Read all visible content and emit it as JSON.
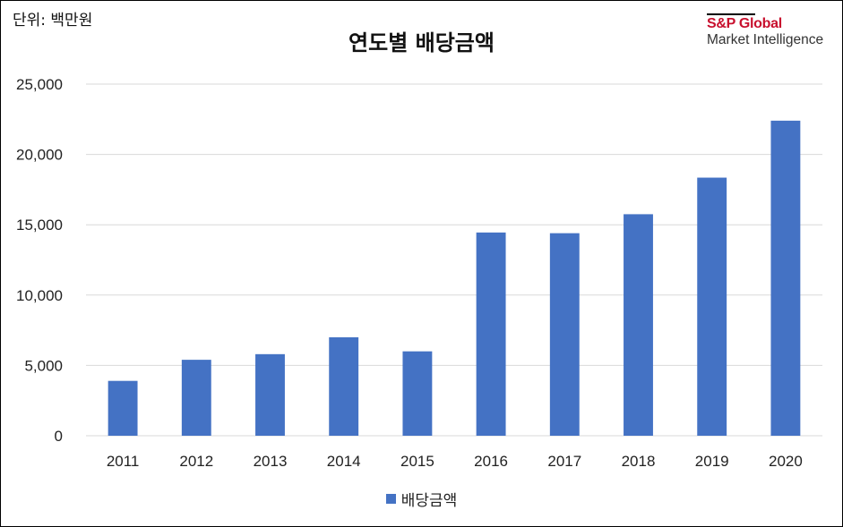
{
  "unit_label": "단위: 백만원",
  "logo": {
    "brand": "S&P Global",
    "sub": "Market Intelligence"
  },
  "colors": {
    "bar": "#4472C4",
    "grid": "#D9D9D9",
    "brand": "#C8102E"
  },
  "chart_data": {
    "type": "bar",
    "title": "연도별 배당금액",
    "xlabel": "",
    "ylabel": "",
    "categories": [
      "2011",
      "2012",
      "2013",
      "2014",
      "2015",
      "2016",
      "2017",
      "2018",
      "2019",
      "2020"
    ],
    "series": [
      {
        "name": "배당금액",
        "values": [
          3900,
          5400,
          5800,
          7000,
          6000,
          14450,
          14400,
          15750,
          18350,
          22400
        ]
      }
    ],
    "ylim": [
      0,
      25000
    ],
    "yticks": [
      "0",
      "5,000",
      "10,000",
      "15,000",
      "20,000",
      "25,000"
    ],
    "grid": true,
    "legend_position": "bottom"
  }
}
